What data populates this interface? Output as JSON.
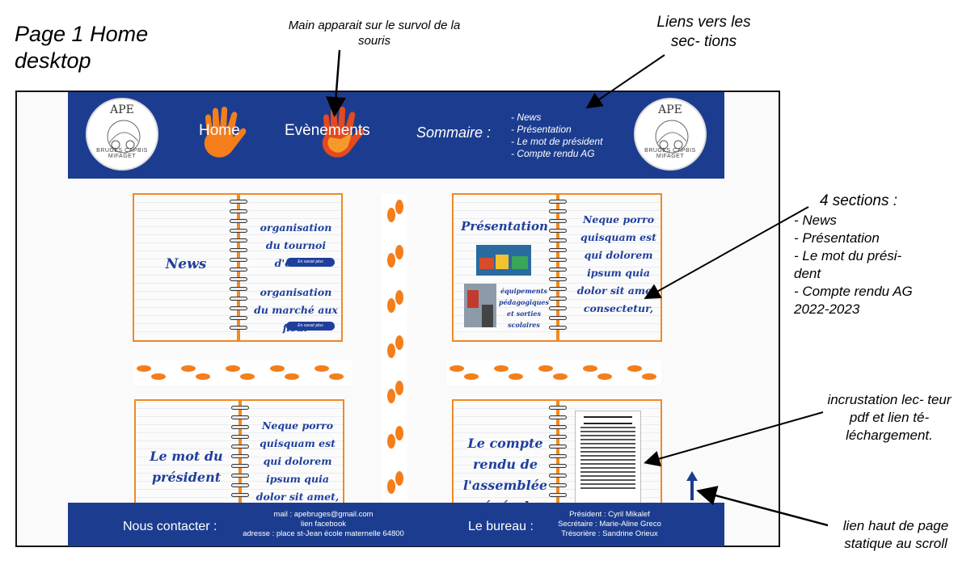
{
  "annotations": {
    "page_title": "Page 1 Home desktop",
    "hand_hover": "Main apparait sur le survol de la souris",
    "section_links": "Liens vers les sec- tions",
    "sections_heading": "4 sections :",
    "sections_list": [
      "- News",
      "- Présentation",
      "- Le mot du prési- dent",
      "-  Compte rendu AG 2022-2023"
    ],
    "pdf_viewer": "incrustation lec- teur pdf et lien té- léchargement.",
    "back_to_top": "lien haut de page statique au scroll"
  },
  "header": {
    "logo_text": "APE",
    "logo_tagline": "BRUGES CAPBIS MIFAGET",
    "nav": [
      {
        "label": "Home",
        "icon": "orange-hand-icon"
      },
      {
        "label": "Evènements",
        "icon": "red-hand-icon"
      }
    ],
    "sommaire_label": "Sommaire :",
    "sommaire_items": [
      "- News",
      "- Présentation",
      "- Le mot de président",
      "- Compte rendu AG"
    ]
  },
  "sections": {
    "news": {
      "title": "News",
      "items": [
        {
          "text": "organisation du tournoi d'échec",
          "button": "En savoir plus"
        },
        {
          "text": "organisation du marché aux fleur",
          "button": "En savoir plus"
        }
      ]
    },
    "presentation": {
      "title": "Présentation",
      "caption": "équipements pédagogiques et sorties scolaires",
      "body": "Neque porro quisquam est qui dolorem ipsum quia dolor sit amet, consectetur,"
    },
    "mot_president": {
      "title": "Le mot du président",
      "body": "Neque porro quisquam est qui dolorem ipsum quia dolor sit amet,"
    },
    "compte_rendu": {
      "title": "Le compte rendu de l'assemblée générale"
    }
  },
  "footer": {
    "contact_label": "Nous contacter :",
    "contact_lines": [
      "mail : apebruges@gmail.com",
      "lien facebook",
      "adresse : place st-Jean école maternelle 64800"
    ],
    "bureau_label": "Le bureau :",
    "bureau_lines": [
      "Président : Cyril Mikalef",
      "Secrétaire : Marie-Aline Greco",
      "Trésorière : Sandrine Orieux"
    ]
  },
  "colors": {
    "header_blue": "#1c3d8f",
    "notebook_orange": "#f08a24",
    "text_blue": "#1f3f9c",
    "footstep_orange": "#f47e1b"
  }
}
